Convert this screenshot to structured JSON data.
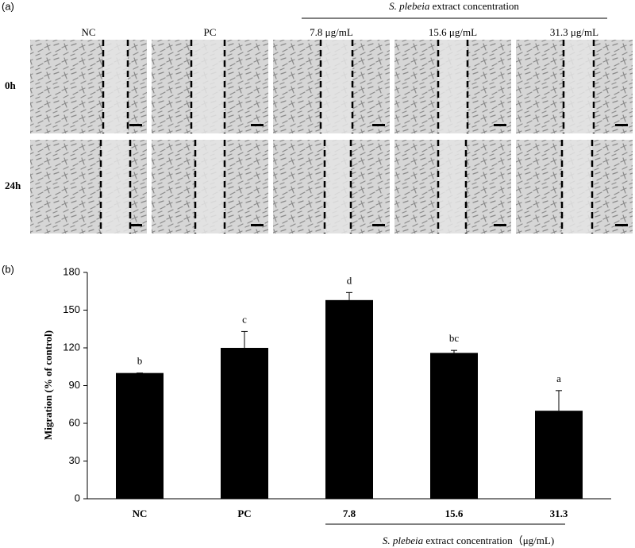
{
  "panel_a": {
    "label": "(a)",
    "header": {
      "italic": "S. plebeia",
      "rest": "extract concentration"
    },
    "columns": [
      "NC",
      "PC",
      "7.8 μg/mL",
      "15.6 μg/mL",
      "31.3 μg/mL"
    ],
    "rows": [
      "0h",
      "24h"
    ]
  },
  "chart_data": {
    "type": "bar",
    "panel_label": "(b)",
    "y_label": "Migration  (% of control)",
    "x_label": {
      "italic": "S. plebeia",
      "rest": "extract concentration（μg/mL)"
    },
    "categories": [
      "NC",
      "PC",
      "7.8",
      "15.6",
      "31.3"
    ],
    "values": [
      100,
      120,
      158,
      116,
      70
    ],
    "errors": [
      0,
      13,
      6,
      2,
      16
    ],
    "annotations": [
      "b",
      "c",
      "d",
      "bc",
      "a"
    ],
    "color": "#000000",
    "ylim": [
      0,
      180
    ],
    "yticks": [
      0,
      30,
      60,
      90,
      120,
      150,
      180
    ],
    "grid": false
  }
}
